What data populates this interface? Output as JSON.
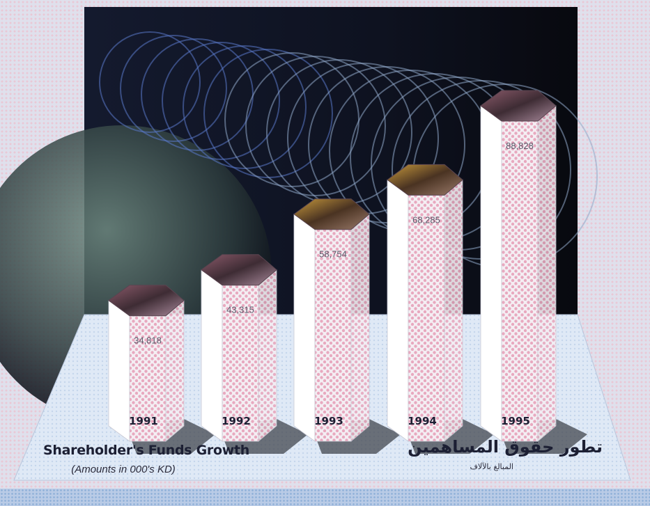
{
  "chart_data": {
    "type": "bar",
    "title": "Shareholder's Funds Growth",
    "subtitle": "(Amounts in 000's KD)",
    "title_arabic": "تطور حقوق المساهمين",
    "subtitle_arabic": "المبالغ بالآلاف",
    "categories": [
      "1991",
      "1992",
      "1993",
      "1994",
      "1995"
    ],
    "values": [
      34818,
      43315,
      58754,
      68285,
      88828
    ],
    "value_labels": [
      "34,818",
      "43,315",
      "58,754",
      "68,285",
      "88,828"
    ],
    "ylim": [
      0,
      88828
    ],
    "grid": false,
    "legend": "none"
  },
  "colors": {
    "backdrop": "#0b0d1a",
    "rings": "#8fa8c8",
    "column_face": "#ffffff",
    "column_dots": "#e8a9bf",
    "floor": "#d8e6f5",
    "text": "#1c1f33"
  }
}
